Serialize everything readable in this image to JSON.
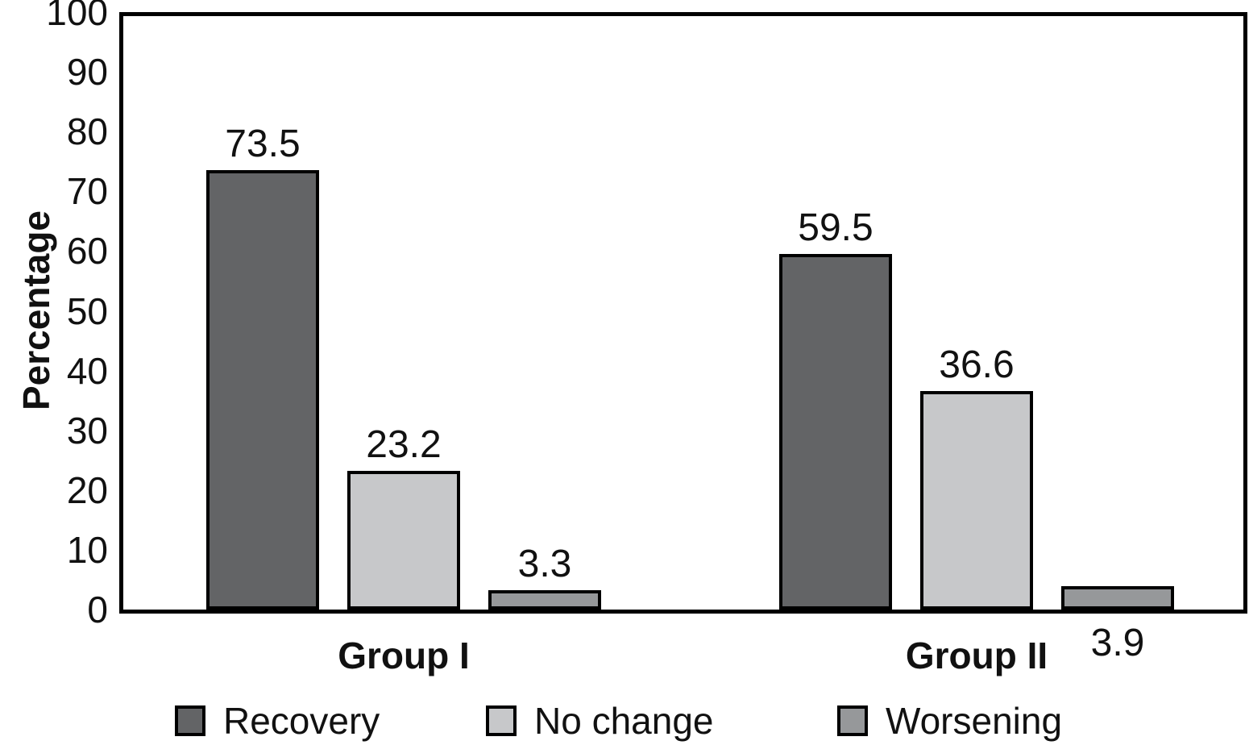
{
  "chart_data": {
    "type": "bar",
    "title": "",
    "xlabel": "",
    "ylabel": "Percentage",
    "ylim": [
      0,
      100
    ],
    "yticks": [
      0,
      10,
      20,
      30,
      40,
      50,
      60,
      70,
      80,
      90,
      100
    ],
    "grid": false,
    "background": "#ffffff",
    "axis_color": "#000000",
    "bar_outline_color": "#000000",
    "value_labels": true,
    "legend_position": "bottom",
    "categories": [
      "Group I",
      "Group II"
    ],
    "series": [
      {
        "name": "Recovery",
        "color": "#636466",
        "values": [
          73.5,
          59.5
        ],
        "label_position": [
          "above",
          "above"
        ]
      },
      {
        "name": "No change",
        "color": "#c7c8ca",
        "values": [
          23.2,
          36.6
        ],
        "label_position": [
          "above",
          "above"
        ]
      },
      {
        "name": "Worsening",
        "color": "#96989a",
        "values": [
          3.3,
          3.9
        ],
        "label_position": [
          "above",
          "below_axis"
        ]
      }
    ]
  }
}
